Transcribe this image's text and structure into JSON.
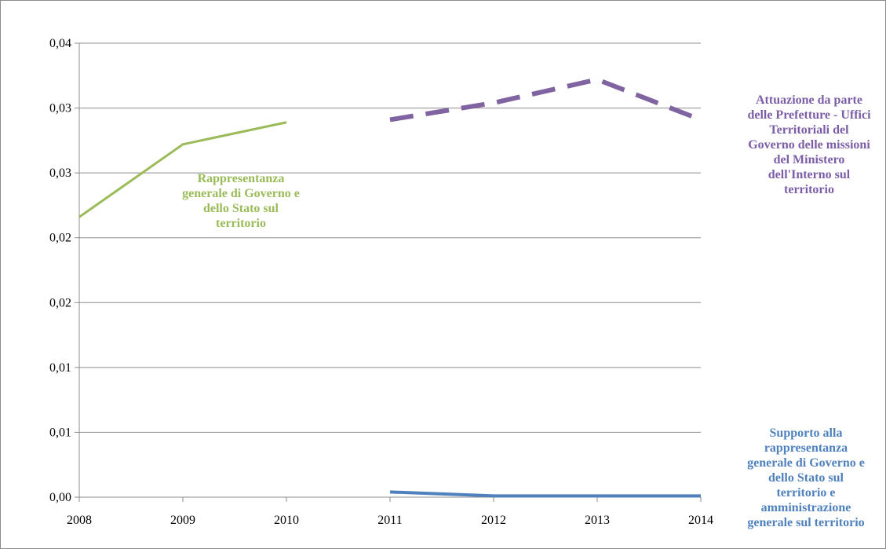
{
  "chart_data": {
    "type": "line",
    "x": [
      2008,
      2009,
      2010,
      2011,
      2012,
      2013,
      2014
    ],
    "y_tick_labels": [
      "0,00",
      "0,01",
      "0,01",
      "0,02",
      "0,02",
      "0,03",
      "0,03",
      "0,04"
    ],
    "ylim": [
      0,
      0.035
    ],
    "grid": true,
    "series": [
      {
        "name": "Rappresentanza generale di Governo e dello Stato sul territorio",
        "color": "#9bbb59",
        "style": "solid",
        "points": [
          [
            2008,
            0.0216
          ],
          [
            2009,
            0.0272
          ],
          [
            2010,
            0.0289
          ]
        ]
      },
      {
        "name": "Attuazione da parte delle Prefetture - Uffici Territoriali del Governo delle missioni del Ministero dell'Interno sul territorio",
        "color": "#8064a2",
        "style": "dashed",
        "points": [
          [
            2011,
            0.0291
          ],
          [
            2012,
            0.0304
          ],
          [
            2013,
            0.0322
          ],
          [
            2014,
            0.0291
          ]
        ]
      },
      {
        "name": "Supporto alla rappresentanza generale di Governo e dello Stato sul territorio e amministrazione generale sul territorio",
        "color": "#4f81bd",
        "style": "solid",
        "points": [
          [
            2011,
            0.0004
          ],
          [
            2012,
            0.0001
          ],
          [
            2013,
            0.0001
          ],
          [
            2014,
            0.0001
          ]
        ]
      }
    ]
  },
  "labels": {
    "green": "Rappresentanza\ngenerale di Governo e\ndello Stato sul\nterritorio",
    "purple": "Attuazione da parte\ndelle Prefetture - Uffici\nTerritoriali del\nGoverno delle missioni\ndel Ministero\ndell'Interno sul\nterritorio",
    "blue": "Supporto alla\nrappresentanza\ngenerale di Governo e\ndello Stato sul\nterritorio e\namministrazione\ngenerale sul territorio"
  }
}
